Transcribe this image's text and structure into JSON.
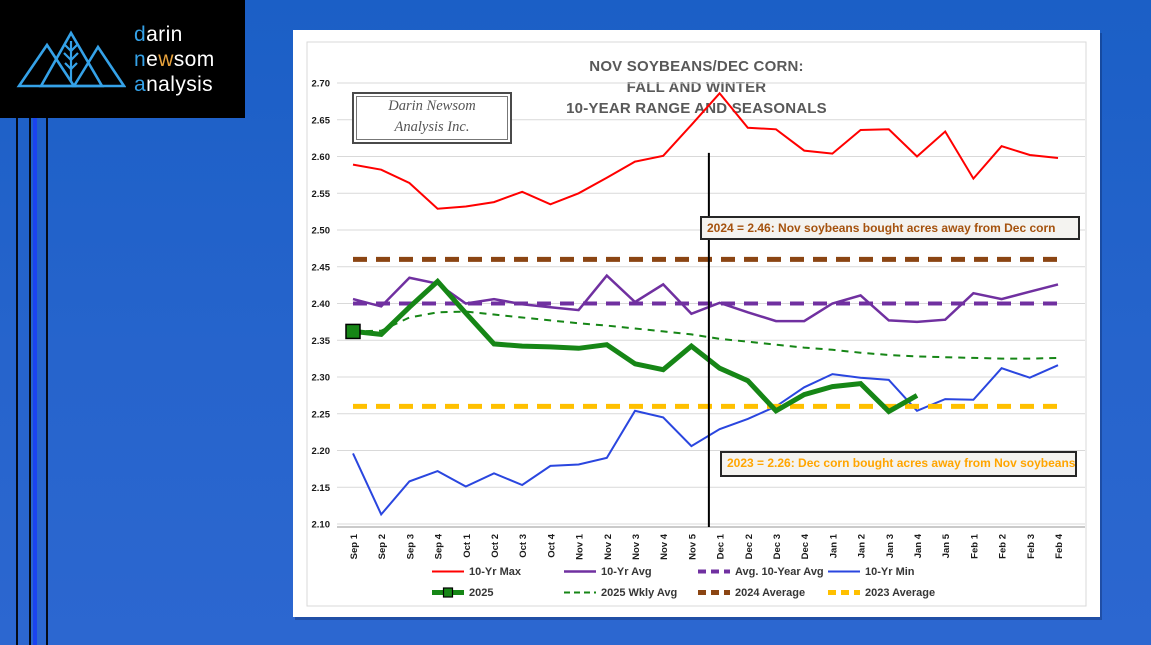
{
  "logo": {
    "colors": {
      "accent": "#35A2E8",
      "orange": "#E8A23C",
      "white": "#FFFFFF"
    },
    "lines": [
      [
        {
          "t": "d",
          "c": "accent"
        },
        {
          "t": "arin",
          "c": "white"
        }
      ],
      [
        {
          "t": "n",
          "c": "accent"
        },
        {
          "t": "e",
          "c": "white"
        },
        {
          "t": "w",
          "c": "orange"
        },
        {
          "t": "som",
          "c": "white"
        }
      ],
      [
        {
          "t": "a",
          "c": "accent"
        },
        {
          "t": "nalysis",
          "c": "white"
        }
      ]
    ]
  },
  "watermark": {
    "line1": "Darin Newsom",
    "line2": "Analysis Inc."
  },
  "chart_data": {
    "type": "line",
    "title_lines": [
      "NOV SOYBEANS/DEC CORN:",
      "FALL AND WINTER",
      "10-YEAR RANGE AND SEASONALS"
    ],
    "categories": [
      "Sep 1",
      "Sep 2",
      "Sep 3",
      "Sep 4",
      "Oct 1",
      "Oct 2",
      "Oct 3",
      "Oct 4",
      "Nov 1",
      "Nov 2",
      "Nov 3",
      "Nov 4",
      "Nov 5",
      "Dec 1",
      "Dec 2",
      "Dec 3",
      "Dec 4",
      "Jan 1",
      "Jan 2",
      "Jan 3",
      "Jan 4",
      "Jan 5",
      "Feb 1",
      "Feb 2",
      "Feb 3",
      "Feb 4"
    ],
    "y_ticks": [
      "2.70",
      "2.65",
      "2.60",
      "2.55",
      "2.50",
      "2.45",
      "2.40",
      "2.35",
      "2.30",
      "2.25",
      "2.20",
      "2.15",
      "2.10"
    ],
    "ylim": [
      2.1,
      2.7
    ],
    "grid": "horizontal",
    "legend_position": "bottom",
    "series": [
      {
        "name": "10-Yr Max",
        "color": "#FF0000",
        "style": "solid",
        "width": 2,
        "values": [
          2.589,
          2.582,
          2.564,
          2.529,
          2.532,
          2.538,
          2.552,
          2.535,
          2.55,
          2.571,
          2.593,
          2.601,
          2.643,
          2.686,
          2.639,
          2.637,
          2.608,
          2.604,
          2.636,
          2.637,
          2.6,
          2.634,
          2.57,
          2.614,
          2.602,
          2.598
        ]
      },
      {
        "name": "10-Yr Avg",
        "color": "#7030A0",
        "style": "solid",
        "width": 2.5,
        "values": [
          2.406,
          2.396,
          2.435,
          2.427,
          2.4,
          2.406,
          2.399,
          2.395,
          2.391,
          2.438,
          2.402,
          2.426,
          2.386,
          2.401,
          2.388,
          2.376,
          2.376,
          2.4,
          2.411,
          2.377,
          2.375,
          2.378,
          2.414,
          2.406,
          2.416,
          2.426
        ]
      },
      {
        "name": "Avg. 10-Year Avg",
        "color": "#7030A0",
        "style": "dashed",
        "width": 4,
        "constant": 2.4
      },
      {
        "name": "10-Yr Min",
        "color": "#2A46DF",
        "style": "solid",
        "width": 2,
        "values": [
          2.196,
          2.113,
          2.158,
          2.172,
          2.151,
          2.169,
          2.153,
          2.179,
          2.181,
          2.19,
          2.254,
          2.245,
          2.206,
          2.229,
          2.243,
          2.26,
          2.286,
          2.304,
          2.299,
          2.296,
          2.254,
          2.27,
          2.269,
          2.312,
          2.299,
          2.316
        ]
      },
      {
        "name": "2025",
        "color": "#168616",
        "style": "solid",
        "width": 5,
        "marker_first": true,
        "values": [
          2.362,
          2.358,
          2.395,
          2.43,
          2.387,
          2.345,
          2.342,
          2.341,
          2.339,
          2.344,
          2.318,
          2.31,
          2.342,
          2.312,
          2.295,
          2.254,
          2.276,
          2.287,
          2.291,
          2.253,
          2.275
        ]
      },
      {
        "name": "2025 Wkly Avg",
        "color": "#168616",
        "style": "dashed_thin",
        "width": 2,
        "values": [
          2.362,
          2.363,
          2.381,
          2.388,
          2.389,
          2.385,
          2.381,
          2.377,
          2.373,
          2.37,
          2.366,
          2.362,
          2.358,
          2.352,
          2.348,
          2.344,
          2.34,
          2.337,
          2.333,
          2.33,
          2.328,
          2.327,
          2.326,
          2.325,
          2.325,
          2.326
        ]
      },
      {
        "name": "2024 Average",
        "color": "#8B4513",
        "style": "dashed",
        "width": 5,
        "constant": 2.46
      },
      {
        "name": "2023 Average",
        "color": "#FFC000",
        "style": "dashed",
        "width": 5,
        "constant": 2.26
      }
    ],
    "vertical_marker_line": {
      "between": [
        "Nov 5",
        "Dec 1"
      ],
      "y_from": 2.1,
      "y_to": 2.605,
      "color": "#000000"
    },
    "annotations": [
      {
        "text": "2024 = 2.46: Nov soybeans bought acres away from Dec corn",
        "color": "#A5520E"
      },
      {
        "text": "2023 = 2.26: Dec corn bought acres away from Nov soybeans",
        "color": "#FFA500"
      }
    ],
    "legend_rows": [
      [
        "10-Yr Max",
        "10-Yr Avg",
        "Avg. 10-Year Avg",
        "10-Yr Min"
      ],
      [
        "2025",
        "2025 Wkly Avg",
        "2024 Average",
        "2023 Average"
      ]
    ]
  }
}
